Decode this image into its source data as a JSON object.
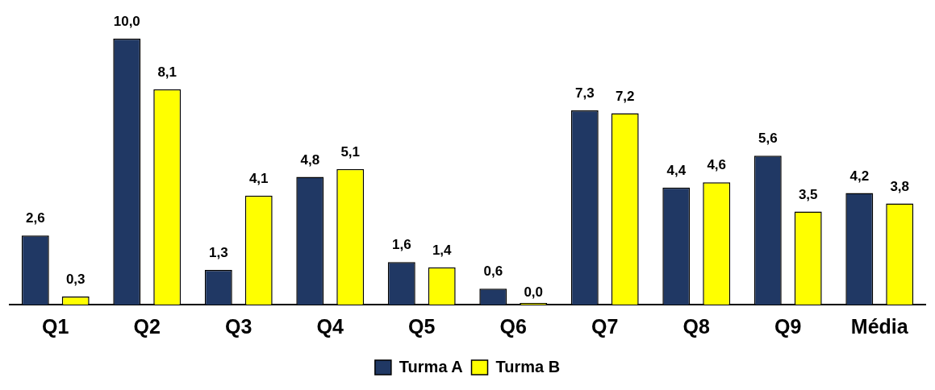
{
  "chart_data": {
    "type": "bar",
    "categories": [
      "Q1",
      "Q2",
      "Q3",
      "Q4",
      "Q5",
      "Q6",
      "Q7",
      "Q8",
      "Q9",
      "Média"
    ],
    "series": [
      {
        "name": "Turma A",
        "color": "#203864",
        "values": [
          2.6,
          10.0,
          1.3,
          4.8,
          1.6,
          0.6,
          7.3,
          4.4,
          5.6,
          4.2
        ],
        "value_labels": [
          "2,6",
          "10,0",
          "1,3",
          "4,8",
          "1,6",
          "0,6",
          "7,3",
          "4,4",
          "5,6",
          "4,2"
        ]
      },
      {
        "name": "Turma B",
        "color": "#ffff00",
        "values": [
          0.3,
          8.1,
          4.1,
          5.1,
          1.4,
          0.0,
          7.2,
          4.6,
          3.5,
          3.8
        ],
        "value_labels": [
          "0,3",
          "8,1",
          "4,1",
          "5,1",
          "1,4",
          "0,0",
          "7,2",
          "4,6",
          "3,5",
          "3,8"
        ]
      }
    ],
    "grid": false,
    "legend": "bottom"
  }
}
